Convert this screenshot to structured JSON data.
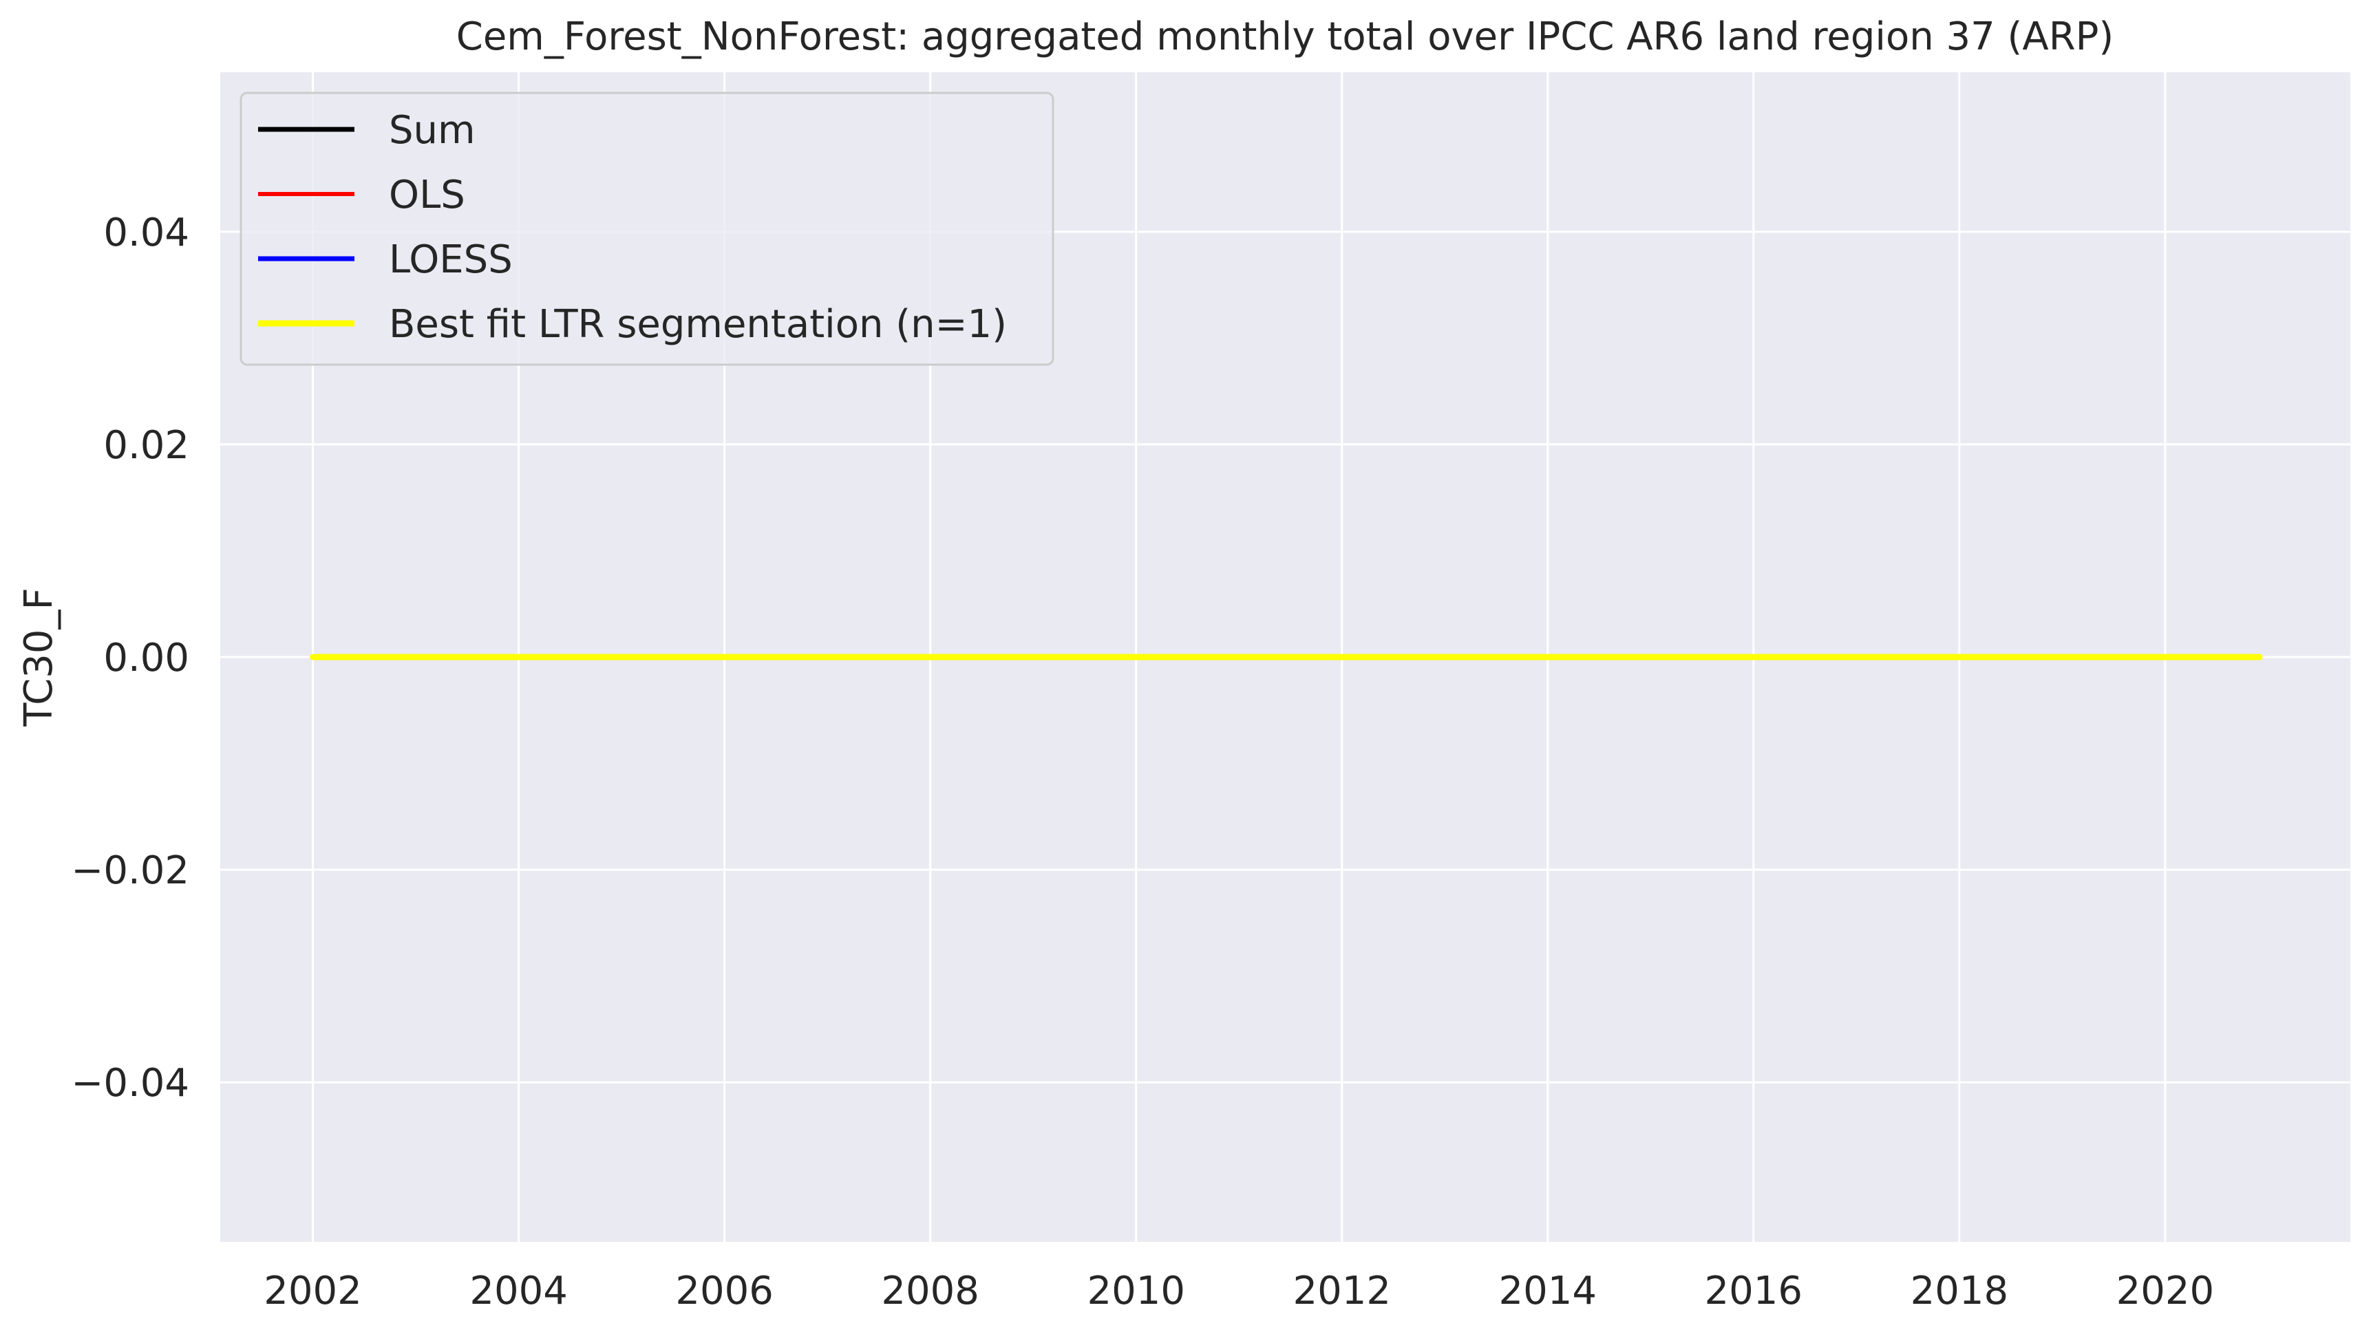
{
  "chart_data": {
    "type": "line",
    "title": "Cem_Forest_NonForest: aggregated monthly total over IPCC AR6 land region 37 (ARP)",
    "xlabel": "",
    "ylabel": "TC30_F",
    "xlim": [
      2001.1,
      2021.8
    ],
    "ylim": [
      -0.055,
      0.055
    ],
    "x_ticks": [
      2002,
      2004,
      2006,
      2008,
      2010,
      2012,
      2014,
      2016,
      2018,
      2020
    ],
    "y_ticks": [
      -0.04,
      -0.02,
      0.0,
      0.02,
      0.04
    ],
    "y_tick_labels": [
      "−0.04",
      "−0.02",
      "0.00",
      "0.02",
      "0.04"
    ],
    "grid": true,
    "legend_position": "top-left",
    "background_color": "#eaeaf2",
    "grid_color": "#ffffff",
    "x": [
      2002.0,
      2020.9167
    ],
    "series": [
      {
        "name": "Sum",
        "color": "#000000",
        "values": [
          0.0,
          0.0
        ]
      },
      {
        "name": "OLS",
        "color": "#ff0000",
        "values": [
          0.0,
          0.0
        ]
      },
      {
        "name": "LOESS",
        "color": "#0000ff",
        "values": [
          0.0,
          0.0
        ]
      },
      {
        "name": "Best fit LTR segmentation (n=1)",
        "color": "#ffff00",
        "values": [
          0.0,
          0.0
        ]
      }
    ]
  }
}
